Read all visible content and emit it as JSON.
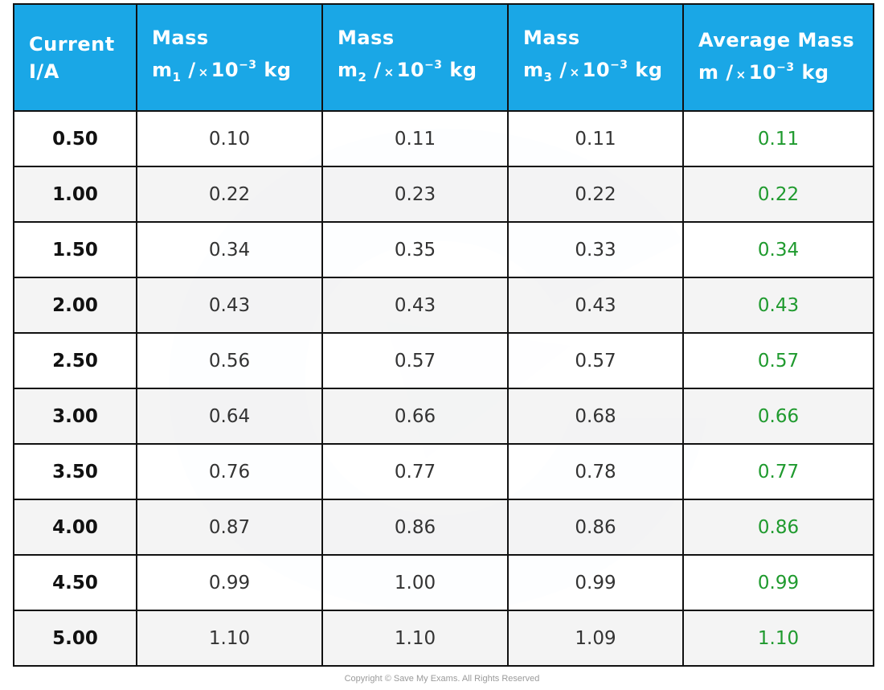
{
  "table": {
    "headers": {
      "current": {
        "line1": "Current",
        "line2": "I/A"
      },
      "mass1": {
        "line1": "Mass",
        "symbol": "m",
        "subscript": "1",
        "slash": "/",
        "times": "×",
        "base": "10",
        "exponent": "−3",
        "unit": "kg"
      },
      "mass2": {
        "line1": "Mass",
        "symbol": "m",
        "subscript": "2",
        "slash": "/",
        "times": "×",
        "base": "10",
        "exponent": "−3",
        "unit": "kg"
      },
      "mass3": {
        "line1": "Mass",
        "symbol": "m",
        "subscript": "3",
        "slash": "/",
        "times": "×",
        "base": "10",
        "exponent": "−3",
        "unit": "kg"
      },
      "average": {
        "line1": "Average Mass",
        "symbol": "m",
        "slash": "/",
        "times": "×",
        "base": "10",
        "exponent": "−3",
        "unit": "kg"
      }
    },
    "rows": [
      {
        "current": "0.50",
        "m1": "0.10",
        "m2": "0.11",
        "m3": "0.11",
        "avg": "0.11"
      },
      {
        "current": "1.00",
        "m1": "0.22",
        "m2": "0.23",
        "m3": "0.22",
        "avg": "0.22"
      },
      {
        "current": "1.50",
        "m1": "0.34",
        "m2": "0.35",
        "m3": "0.33",
        "avg": "0.34"
      },
      {
        "current": "2.00",
        "m1": "0.43",
        "m2": "0.43",
        "m3": "0.43",
        "avg": "0.43"
      },
      {
        "current": "2.50",
        "m1": "0.56",
        "m2": "0.57",
        "m3": "0.57",
        "avg": "0.57"
      },
      {
        "current": "3.00",
        "m1": "0.64",
        "m2": "0.66",
        "m3": "0.68",
        "avg": "0.66"
      },
      {
        "current": "3.50",
        "m1": "0.76",
        "m2": "0.77",
        "m3": "0.78",
        "avg": "0.77"
      },
      {
        "current": "4.00",
        "m1": "0.87",
        "m2": "0.86",
        "m3": "0.86",
        "avg": "0.86"
      },
      {
        "current": "4.50",
        "m1": "0.99",
        "m2": "1.00",
        "m3": "0.99",
        "avg": "0.99"
      },
      {
        "current": "5.00",
        "m1": "1.10",
        "m2": "1.10",
        "m3": "1.09",
        "avg": "1.10"
      }
    ]
  },
  "footer": {
    "copyright": "Copyright © Save My Exams. All Rights Reserved"
  },
  "colors": {
    "header_background": "#1aa7e6",
    "header_text": "#ffffff",
    "average_text": "#1f9a2e",
    "border": "#111111",
    "row_alternate": "#f3f3f3"
  },
  "icons": {
    "watermark": "save-my-exams-logo-watermark"
  }
}
